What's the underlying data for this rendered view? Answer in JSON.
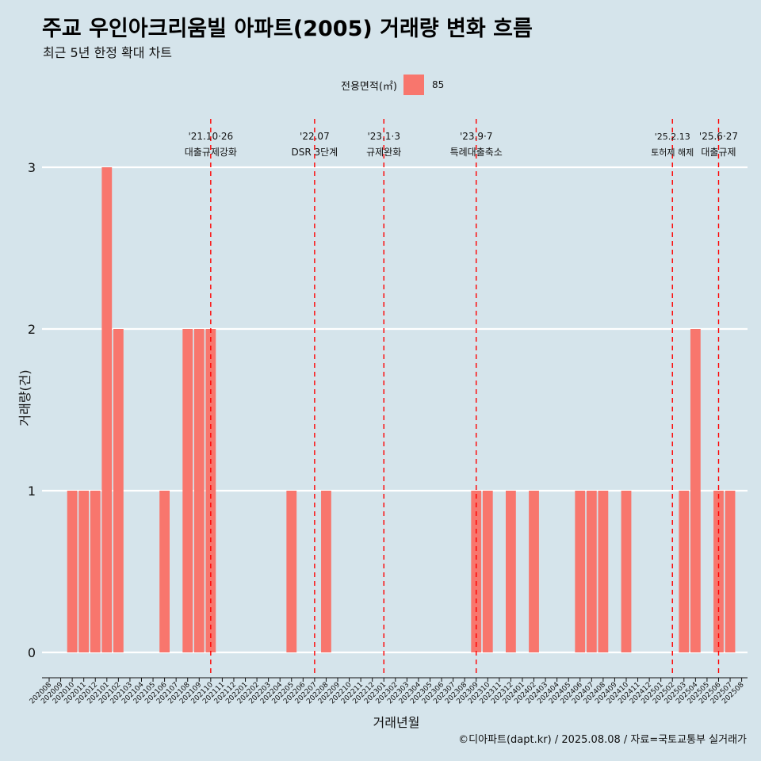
{
  "header": {
    "title": "주교 우인아크리움빌 아파트(2005) 거래량 변화 흐름",
    "subtitle": "최근 5년 한정 확대 차트"
  },
  "legend": {
    "title": "전용면적(㎡)",
    "item": "85",
    "color": "#f8766d"
  },
  "caption": "©디아파트(dapt.kr) / 2025.08.08 / 자료=국토교통부 실거래가",
  "chart_data": {
    "type": "bar",
    "xlabel": "거래년월",
    "ylabel": "거래량(건)",
    "ylim": [
      0,
      3
    ],
    "yticks": [
      0,
      1,
      2,
      3
    ],
    "grid": true,
    "legend_position": "top",
    "bar_color": "#f8766d",
    "series": [
      {
        "name": "85",
        "color": "#f8766d"
      }
    ],
    "categories": [
      "202008",
      "202009",
      "202010",
      "202011",
      "202012",
      "202101",
      "202102",
      "202103",
      "202104",
      "202105",
      "202106",
      "202107",
      "202108",
      "202109",
      "202110",
      "202111",
      "202112",
      "202201",
      "202202",
      "202203",
      "202204",
      "202205",
      "202206",
      "202207",
      "202208",
      "202209",
      "202210",
      "202211",
      "202212",
      "202301",
      "202302",
      "202303",
      "202304",
      "202305",
      "202306",
      "202307",
      "202308",
      "202309",
      "202310",
      "202311",
      "202312",
      "202401",
      "202402",
      "202403",
      "202404",
      "202405",
      "202406",
      "202407",
      "202408",
      "202409",
      "202410",
      "202411",
      "202412",
      "202501",
      "202502",
      "202503",
      "202504",
      "202505",
      "202506",
      "202507",
      "202508"
    ],
    "bars": [
      {
        "month": "202010",
        "value": 1
      },
      {
        "month": "202011",
        "value": 1
      },
      {
        "month": "202012",
        "value": 1
      },
      {
        "month": "202101",
        "value": 3
      },
      {
        "month": "202102",
        "value": 2
      },
      {
        "month": "202106",
        "value": 1
      },
      {
        "month": "202108",
        "value": 2
      },
      {
        "month": "202109",
        "value": 2
      },
      {
        "month": "202110",
        "value": 2
      },
      {
        "month": "202205",
        "value": 1
      },
      {
        "month": "202208",
        "value": 1
      },
      {
        "month": "202309",
        "value": 1
      },
      {
        "month": "202310",
        "value": 1
      },
      {
        "month": "202312",
        "value": 1
      },
      {
        "month": "202402",
        "value": 1
      },
      {
        "month": "202406",
        "value": 1
      },
      {
        "month": "202407",
        "value": 1
      },
      {
        "month": "202408",
        "value": 1
      },
      {
        "month": "202410",
        "value": 1
      },
      {
        "month": "202503",
        "value": 1
      },
      {
        "month": "202504",
        "value": 2
      },
      {
        "month": "202506",
        "value": 1
      },
      {
        "month": "202507",
        "value": 1
      }
    ],
    "event_color": "#ff0000",
    "events": [
      {
        "date_label": "'21.10·26",
        "desc": "대출규제강화",
        "month": "202110"
      },
      {
        "date_label": "'22.07",
        "desc": "DSR 3단계",
        "month": "202207"
      },
      {
        "date_label": "'23.1·3",
        "desc": "규제완화",
        "month": "202301"
      },
      {
        "date_label": "'23.9·7",
        "desc": "특례대출축소",
        "month": "202309"
      },
      {
        "date_label": "'25.2.13",
        "desc": "토허제 해제",
        "month": "202502"
      },
      {
        "date_label": "'25.6·27",
        "desc": "대출규제",
        "month": "202506"
      }
    ]
  }
}
